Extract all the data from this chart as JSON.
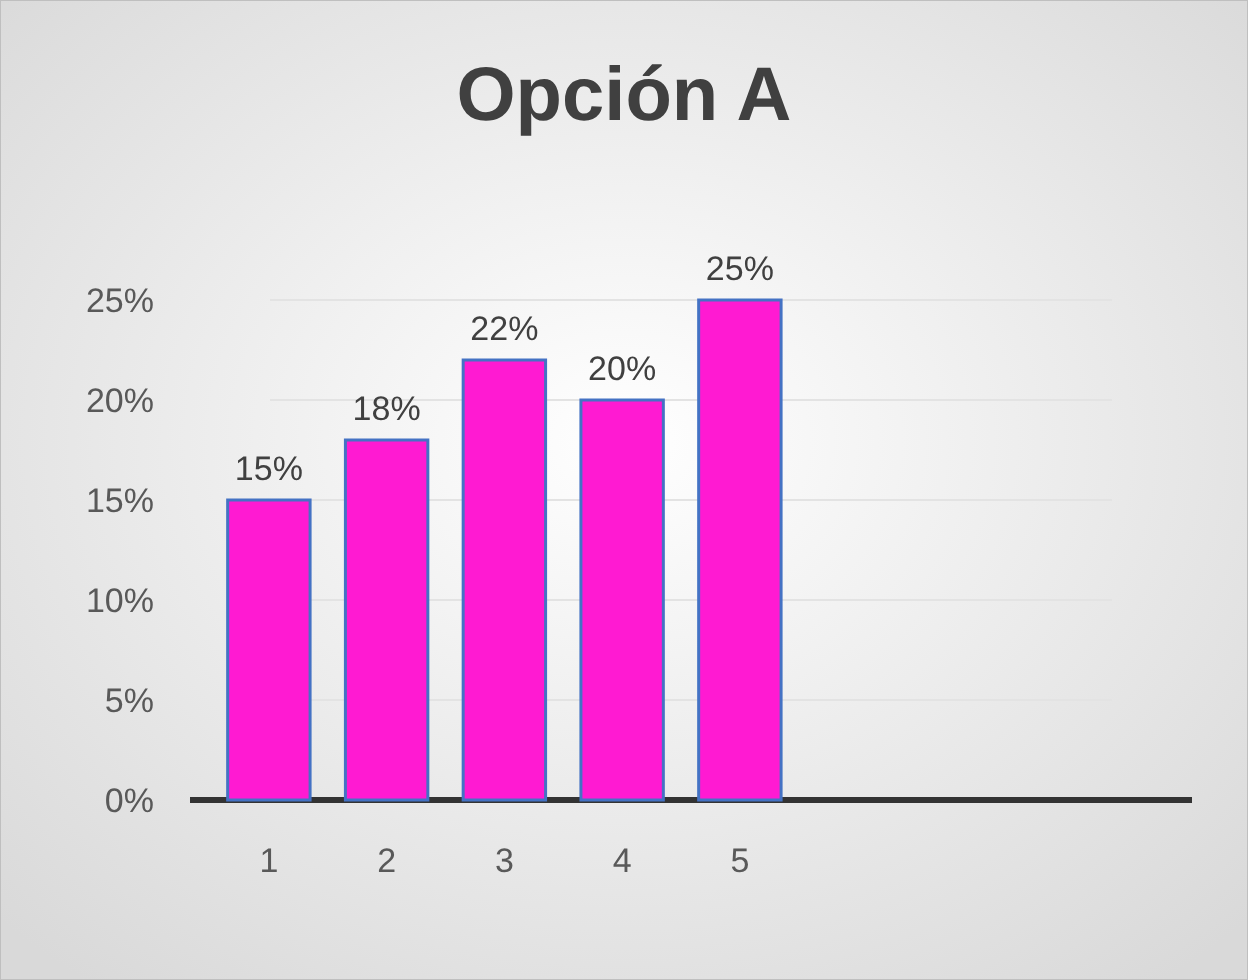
{
  "chart_data": {
    "type": "bar",
    "title": "Opción A",
    "categories": [
      "1",
      "2",
      "3",
      "4",
      "5",
      null,
      null,
      null
    ],
    "values": [
      15,
      18,
      22,
      20,
      25,
      null,
      null,
      null
    ],
    "value_labels": [
      "15%",
      "18%",
      "22%",
      "20%",
      "25%",
      null,
      null,
      null
    ],
    "color": "#ff1ad2",
    "ylim": [
      0,
      25
    ],
    "yticks": [
      {
        "value": 0,
        "label": "0%"
      },
      {
        "value": 5,
        "label": "5%"
      },
      {
        "value": 10,
        "label": "10%"
      },
      {
        "value": 15,
        "label": "15%"
      },
      {
        "value": 20,
        "label": "20%"
      },
      {
        "value": 25,
        "label": "25%"
      }
    ],
    "grid": true
  }
}
